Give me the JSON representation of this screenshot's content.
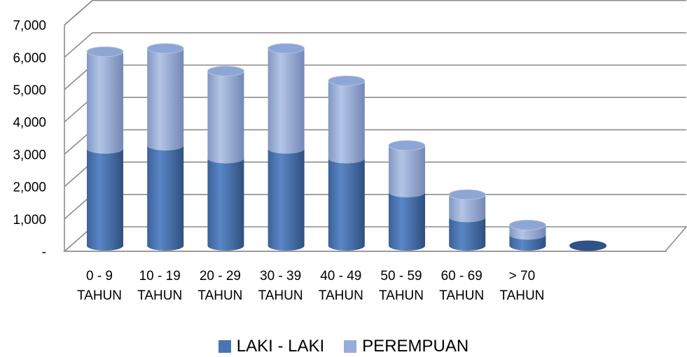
{
  "chart_data": {
    "type": "bar",
    "subtype": "stacked-3d-cylinder",
    "title": "",
    "xlabel": "",
    "ylabel": "",
    "ylim": [
      0,
      7000
    ],
    "yticks": [
      "-",
      "1,000",
      "2,000",
      "3,000",
      "4,000",
      "5,000",
      "6,000",
      "7,000"
    ],
    "grid": true,
    "legend_position": "bottom",
    "categories": [
      [
        "0 - 9",
        "TAHUN"
      ],
      [
        "10 - 19",
        "TAHUN"
      ],
      [
        "20 - 29",
        "TAHUN"
      ],
      [
        "30 - 39",
        "TAHUN"
      ],
      [
        "40 - 49",
        "TAHUN"
      ],
      [
        "50 - 59",
        "TAHUN"
      ],
      [
        "60 - 69",
        "TAHUN"
      ],
      [
        "> 70",
        "TAHUN"
      ],
      [
        "",
        ""
      ]
    ],
    "series": [
      {
        "name": "LAKI - LAKI",
        "color": "#4a74b4",
        "values": [
          3000,
          3100,
          2700,
          3000,
          2700,
          1650,
          880,
          340,
          0
        ]
      },
      {
        "name": "PEREMPUAN",
        "color": "#97add8",
        "values": [
          3000,
          3000,
          2700,
          3100,
          2400,
          1450,
          700,
          300,
          0
        ]
      }
    ]
  }
}
